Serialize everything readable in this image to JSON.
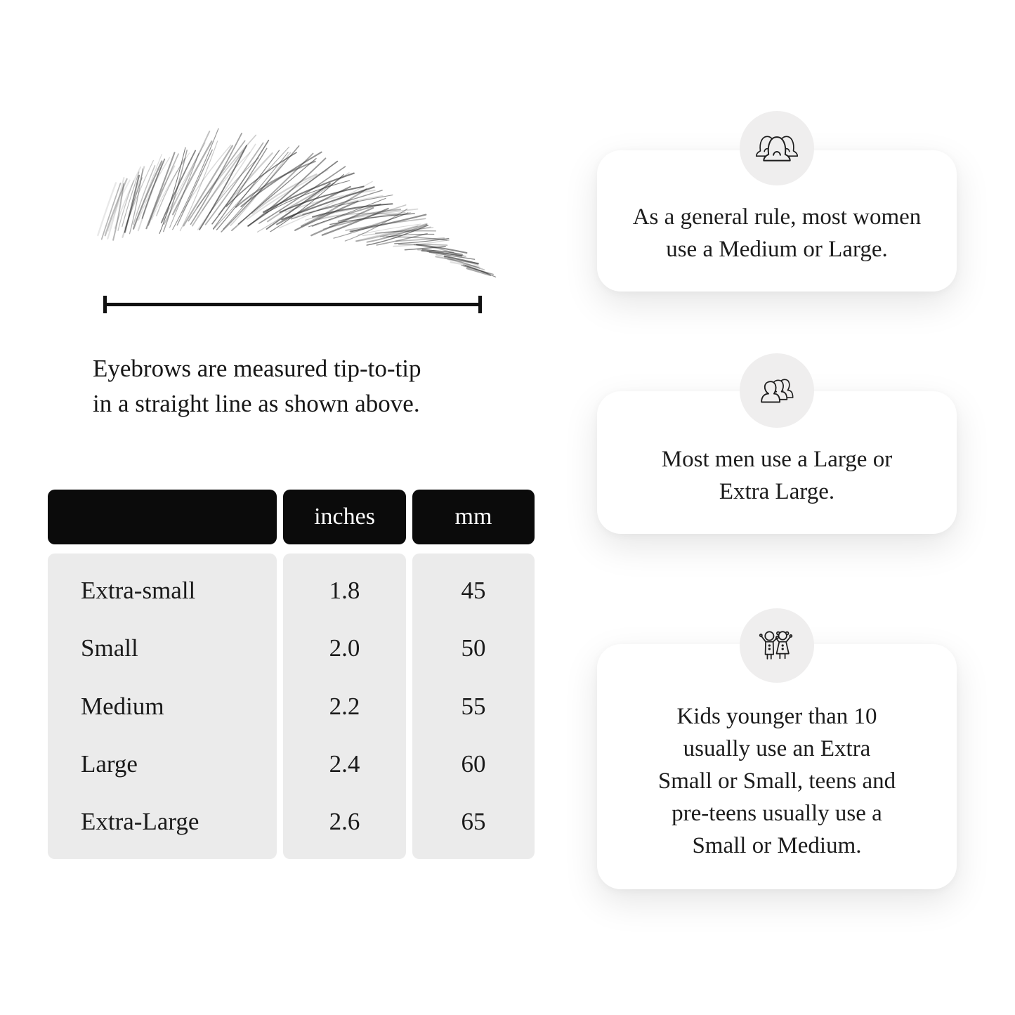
{
  "measurement": {
    "caption_lines": [
      "Eyebrows are measured tip-to-tip",
      "in a straight line as shown above."
    ]
  },
  "table": {
    "header": {
      "size": "",
      "inches": "inches",
      "mm": "mm"
    },
    "rows": [
      {
        "label": "Extra-small",
        "inches": "1.8",
        "mm": "45"
      },
      {
        "label": "Small",
        "inches": "2.0",
        "mm": "50"
      },
      {
        "label": "Medium",
        "inches": "2.2",
        "mm": "55"
      },
      {
        "label": "Large",
        "inches": "2.4",
        "mm": "60"
      },
      {
        "label": "Extra-Large",
        "inches": "2.6",
        "mm": "65"
      }
    ]
  },
  "cards": [
    {
      "icon": "women-group-icon",
      "lines": [
        "As a general rule, most women",
        "use a Medium or Large."
      ]
    },
    {
      "icon": "men-group-icon",
      "lines": [
        "Most men use a Large or",
        "Extra Large."
      ]
    },
    {
      "icon": "kids-icon",
      "lines": [
        "Kids younger than 10",
        "usually use an Extra",
        "Small or Small, teens and",
        "pre-teens usually use a",
        "Small or Medium."
      ]
    }
  ],
  "colors": {
    "table_header_bg": "#0b0b0b",
    "table_header_text": "#ffffff",
    "table_body_bg": "#ebebeb",
    "card_bg": "#ffffff",
    "icon_circle_bg": "#efeeee",
    "text": "#1a1a1a",
    "measure_line": "#111111"
  }
}
